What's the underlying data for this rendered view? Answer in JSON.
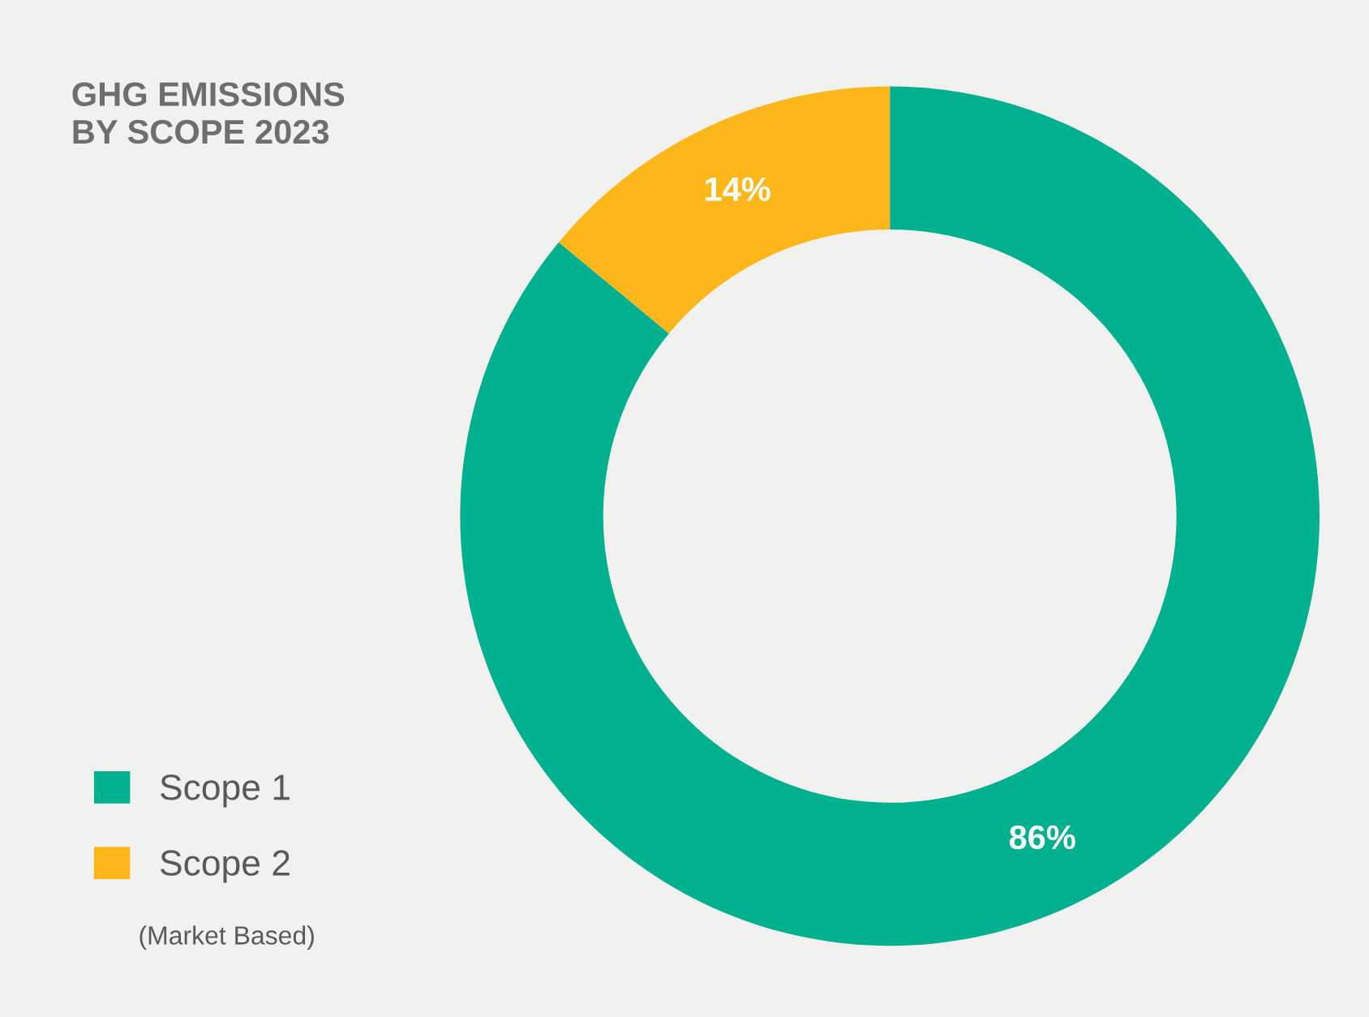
{
  "chart_data": {
    "type": "donut",
    "title": "GHG EMISSIONS\nBY SCOPE 2023",
    "categories": [
      "Scope 1",
      "Scope 2"
    ],
    "values": [
      86,
      14
    ],
    "colors": [
      "#00b08f",
      "#fdb71a"
    ],
    "value_labels": [
      "86%",
      "14%"
    ],
    "legend": "bottom left",
    "annotations": [
      "(Market Based)"
    ]
  }
}
